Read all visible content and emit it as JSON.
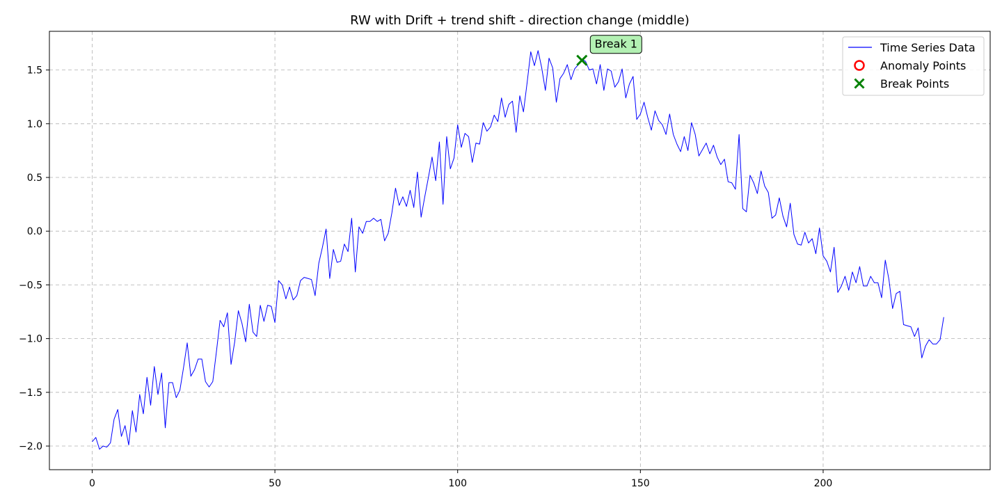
{
  "chart_data": {
    "type": "line",
    "title": "RW with Drift + trend shift - direction change (middle)",
    "xlabel": "",
    "ylabel": "",
    "xlim": [
      -11.7,
      245.7
    ],
    "ylim": [
      -2.22,
      1.86
    ],
    "x_ticks": [
      0,
      50,
      100,
      150,
      200
    ],
    "x_tick_labels": [
      "0",
      "50",
      "100",
      "150",
      "200"
    ],
    "y_ticks": [
      -2.0,
      -1.5,
      -1.0,
      -0.5,
      0.0,
      0.5,
      1.0,
      1.5
    ],
    "y_tick_labels": [
      "−2.0",
      "−1.5",
      "−1.0",
      "−0.5",
      "0.0",
      "0.5",
      "1.0",
      "1.5"
    ],
    "grid": true,
    "legend_position": "top-right",
    "legend": [
      {
        "label": "Time Series Data",
        "marker": "line",
        "color": "#0000ff"
      },
      {
        "label": "Anomaly Points",
        "marker": "circle",
        "color": "#ff0000"
      },
      {
        "label": "Break Points",
        "marker": "x",
        "color": "#008000"
      }
    ],
    "series": [
      {
        "name": "Time Series Data",
        "color": "#0000ff",
        "x_start": 0,
        "values": [
          -1.96,
          -1.92,
          -2.03,
          -2.0,
          -2.01,
          -1.97,
          -1.75,
          -1.66,
          -1.91,
          -1.81,
          -1.99,
          -1.67,
          -1.87,
          -1.52,
          -1.7,
          -1.36,
          -1.62,
          -1.26,
          -1.52,
          -1.32,
          -1.83,
          -1.41,
          -1.41,
          -1.55,
          -1.48,
          -1.27,
          -1.04,
          -1.35,
          -1.29,
          -1.19,
          -1.19,
          -1.4,
          -1.45,
          -1.4,
          -1.12,
          -0.83,
          -0.89,
          -0.76,
          -1.24,
          -1.03,
          -0.74,
          -0.86,
          -1.03,
          -0.68,
          -0.94,
          -0.98,
          -0.69,
          -0.84,
          -0.69,
          -0.7,
          -0.85,
          -0.46,
          -0.5,
          -0.63,
          -0.52,
          -0.64,
          -0.6,
          -0.46,
          -0.43,
          -0.44,
          -0.45,
          -0.6,
          -0.3,
          -0.15,
          0.02,
          -0.44,
          -0.17,
          -0.29,
          -0.28,
          -0.12,
          -0.19,
          0.12,
          -0.38,
          0.04,
          -0.02,
          0.09,
          0.09,
          0.12,
          0.09,
          0.11,
          -0.09,
          -0.02,
          0.17,
          0.4,
          0.24,
          0.32,
          0.23,
          0.38,
          0.22,
          0.55,
          0.13,
          0.32,
          0.5,
          0.69,
          0.47,
          0.83,
          0.25,
          0.88,
          0.58,
          0.68,
          0.99,
          0.78,
          0.91,
          0.88,
          0.64,
          0.82,
          0.81,
          1.01,
          0.93,
          0.97,
          1.08,
          1.02,
          1.24,
          1.06,
          1.18,
          1.21,
          0.92,
          1.26,
          1.11,
          1.38,
          1.67,
          1.54,
          1.68,
          1.52,
          1.31,
          1.61,
          1.52,
          1.2,
          1.42,
          1.47,
          1.55,
          1.41,
          1.51,
          1.55,
          1.6,
          1.58,
          1.5,
          1.51,
          1.37,
          1.55,
          1.31,
          1.51,
          1.49,
          1.34,
          1.39,
          1.51,
          1.24,
          1.37,
          1.44,
          1.04,
          1.09,
          1.2,
          1.06,
          0.94,
          1.12,
          1.03,
          0.99,
          0.9,
          1.09,
          0.9,
          0.81,
          0.74,
          0.88,
          0.75,
          1.01,
          0.9,
          0.7,
          0.76,
          0.82,
          0.72,
          0.8,
          0.69,
          0.62,
          0.67,
          0.46,
          0.45,
          0.39,
          0.9,
          0.21,
          0.18,
          0.52,
          0.45,
          0.35,
          0.56,
          0.42,
          0.36,
          0.12,
          0.15,
          0.31,
          0.14,
          0.04,
          0.26,
          -0.03,
          -0.12,
          -0.13,
          -0.01,
          -0.11,
          -0.07,
          -0.21,
          0.03,
          -0.23,
          -0.28,
          -0.38,
          -0.15,
          -0.57,
          -0.51,
          -0.42,
          -0.55,
          -0.38,
          -0.48,
          -0.33,
          -0.51,
          -0.51,
          -0.42,
          -0.48,
          -0.48,
          -0.62,
          -0.27,
          -0.45,
          -0.72,
          -0.58,
          -0.56,
          -0.87,
          -0.88,
          -0.89,
          -0.98,
          -0.9,
          -1.18,
          -1.07,
          -1.01,
          -1.05,
          -1.05,
          -1.01,
          -0.8
        ]
      }
    ],
    "anomaly_points": [],
    "break_points": [
      {
        "x": 134,
        "y": 1.59,
        "label": "Break 1"
      }
    ]
  }
}
